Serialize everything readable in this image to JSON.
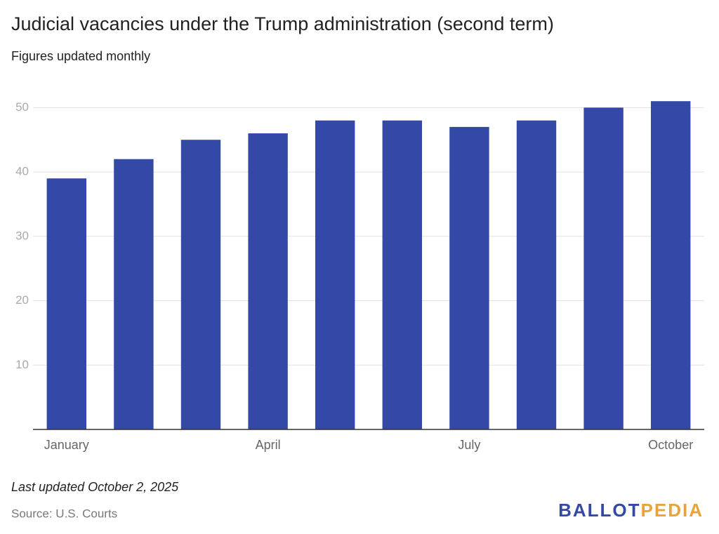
{
  "chart_data": {
    "type": "bar",
    "title": "Judicial vacancies under the Trump administration (second term)",
    "subtitle": "Figures updated monthly",
    "categories": [
      "January",
      null,
      null,
      "April",
      null,
      null,
      "July",
      null,
      null,
      "October"
    ],
    "values": [
      39,
      42,
      45,
      46,
      48,
      48,
      47,
      48,
      50,
      51
    ],
    "color": "#3448a8",
    "ylim": [
      0,
      52
    ],
    "yticks": [
      10,
      20,
      30,
      40,
      50
    ],
    "grid": true,
    "note": "Last updated October 2, 2025",
    "source": "Source: U.S. Courts"
  },
  "branding": {
    "left": "BALLOT",
    "right": "PEDIA"
  }
}
